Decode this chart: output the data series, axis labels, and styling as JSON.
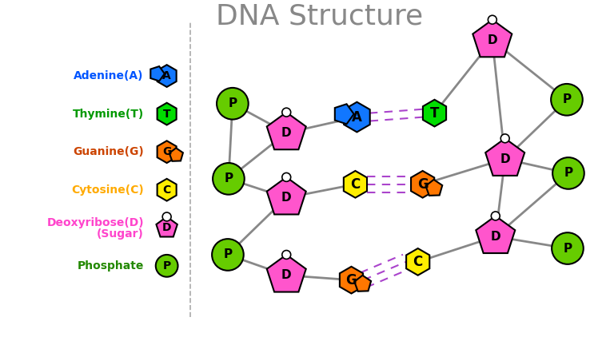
{
  "title": "DNA Structure",
  "title_color": "#888888",
  "title_fontsize": 26,
  "bg_color": "#ffffff",
  "colors": {
    "adenine": "#1177ff",
    "thymine": "#00dd00",
    "guanine": "#ff7700",
    "cytosine": "#ffee00",
    "deoxyribose": "#ff55cc",
    "phosphate": "#66cc00",
    "backbone": "#888888",
    "bond": "#aa44cc",
    "small_circle": "#ffffff"
  },
  "legend": [
    {
      "label": "Adenine(A)",
      "label2": "",
      "shape": "adenine",
      "color": "#1177ff",
      "tcolor": "#0055ff",
      "sym": "A"
    },
    {
      "label": "Thymine(T)",
      "label2": "",
      "shape": "hexagon",
      "color": "#00dd00",
      "tcolor": "#009900",
      "sym": "T"
    },
    {
      "label": "Guanine(G)",
      "label2": "",
      "shape": "guanine",
      "color": "#ff7700",
      "tcolor": "#cc4400",
      "sym": "G"
    },
    {
      "label": "Cytosine(C)",
      "label2": "",
      "shape": "hexagon",
      "color": "#ffee00",
      "tcolor": "#ffaa00",
      "sym": "C"
    },
    {
      "label": "Deoxyribose(D)",
      "label2": "(Sugar)",
      "shape": "pentagon",
      "color": "#ff55cc",
      "tcolor": "#ff44cc",
      "sym": "D"
    },
    {
      "label": "Phosphate",
      "label2": "",
      "shape": "circle",
      "color": "#66cc00",
      "tcolor": "#228800",
      "sym": "P"
    }
  ]
}
